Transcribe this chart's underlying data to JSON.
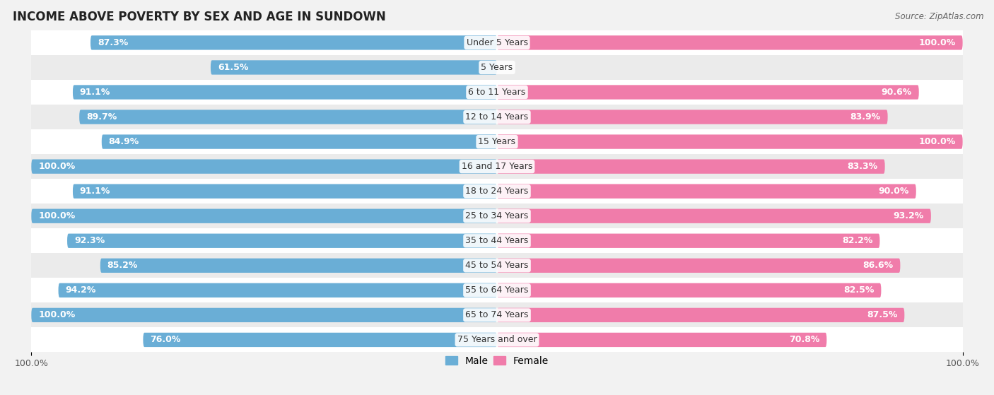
{
  "title": "INCOME ABOVE POVERTY BY SEX AND AGE IN SUNDOWN",
  "source": "Source: ZipAtlas.com",
  "categories": [
    "Under 5 Years",
    "5 Years",
    "6 to 11 Years",
    "12 to 14 Years",
    "15 Years",
    "16 and 17 Years",
    "18 to 24 Years",
    "25 to 34 Years",
    "35 to 44 Years",
    "45 to 54 Years",
    "55 to 64 Years",
    "65 to 74 Years",
    "75 Years and over"
  ],
  "male_values": [
    87.3,
    61.5,
    91.1,
    89.7,
    84.9,
    100.0,
    91.1,
    100.0,
    92.3,
    85.2,
    94.2,
    100.0,
    76.0
  ],
  "female_values": [
    100.0,
    0.0,
    90.6,
    83.9,
    100.0,
    83.3,
    90.0,
    93.2,
    82.2,
    86.6,
    82.5,
    87.5,
    70.8
  ],
  "male_color": "#6aaed6",
  "female_color": "#f07caa",
  "male_label": "Male",
  "female_label": "Female",
  "bg_color": "#f2f2f2",
  "row_colors": [
    "#ffffff",
    "#ebebeb"
  ],
  "max_value": 100.0,
  "bar_height": 0.58,
  "label_fontsize": 9.0,
  "title_fontsize": 12,
  "legend_fontsize": 10,
  "axis_label_fontsize": 9
}
